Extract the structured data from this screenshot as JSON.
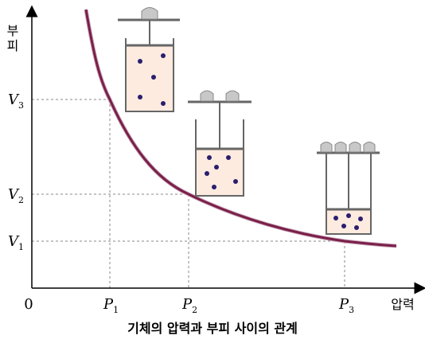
{
  "axes": {
    "y_label": [
      "부",
      "피"
    ],
    "x_label": "압력",
    "origin": "0"
  },
  "y_ticks": [
    {
      "symbol": "V",
      "sub": "3"
    },
    {
      "symbol": "V",
      "sub": "2"
    },
    {
      "symbol": "V",
      "sub": "1"
    }
  ],
  "x_ticks": [
    {
      "symbol": "P",
      "sub": "1"
    },
    {
      "symbol": "P",
      "sub": "2"
    },
    {
      "symbol": "P",
      "sub": "3"
    }
  ],
  "caption": "기체의 압력과 부피 사이의 관계"
}
